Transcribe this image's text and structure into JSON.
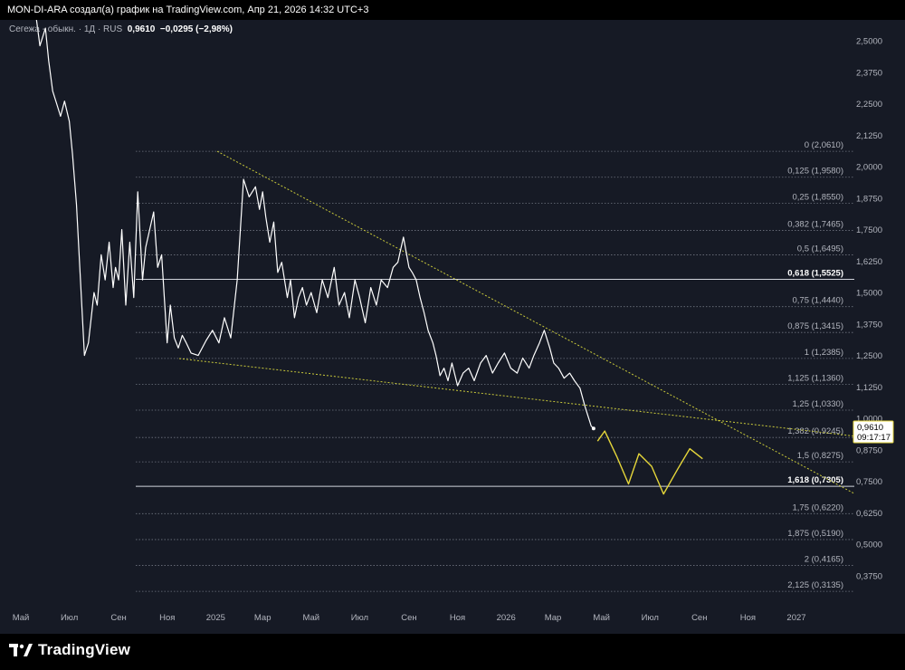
{
  "header": {
    "caption": "MON-DI-ARA создал(а) график на TradingView.com, Апр 21, 2026 14:32 UTC+3"
  },
  "legend": {
    "symbol": "Сегежа - обыкн. · 1Д · RUS",
    "last": "0,9610",
    "change": "−0,0295 (−2,98%)"
  },
  "brand": {
    "name": "TradingView"
  },
  "colors": {
    "background": "#161a25",
    "price_line": "#ffffff",
    "trend_line": "#c9c93a",
    "projection": "#e5d63a",
    "price_label_bg": "#ffffff",
    "price_label_border": "#e5d63a"
  },
  "chart_data": {
    "type": "line",
    "x_labels": [
      "Май",
      "Июл",
      "Сен",
      "Ноя",
      "2025",
      "Мар",
      "Май",
      "Июл",
      "Сен",
      "Ноя",
      "2026",
      "Мар",
      "Май",
      "Июл",
      "Сен",
      "Ноя",
      "2027"
    ],
    "y_ticks": [
      "2,5000",
      "2,3750",
      "2,2500",
      "2,1250",
      "2,0000",
      "1,8750",
      "1,7500",
      "1,6250",
      "1,5000",
      "1,3750",
      "1,2500",
      "1,1250",
      "1,0000",
      "0,8750",
      "0,7500",
      "0,6250",
      "0,5000",
      "0,3750"
    ],
    "ylim": [
      0.3,
      2.55
    ],
    "current_price": {
      "value": "0,9610",
      "countdown": "09:17:17"
    },
    "fib_levels": [
      {
        "ratio": "0",
        "price": "2,0610",
        "v": 2.061
      },
      {
        "ratio": "0,125",
        "price": "1,9580",
        "v": 1.958
      },
      {
        "ratio": "0,25",
        "price": "1,8550",
        "v": 1.855
      },
      {
        "ratio": "0,382",
        "price": "1,7465",
        "v": 1.7465
      },
      {
        "ratio": "0,5",
        "price": "1,6495",
        "v": 1.6495
      },
      {
        "ratio": "0,618",
        "price": "1,5525",
        "v": 1.5525,
        "bold": true
      },
      {
        "ratio": "0,75",
        "price": "1,4440",
        "v": 1.444
      },
      {
        "ratio": "0,875",
        "price": "1,3415",
        "v": 1.3415
      },
      {
        "ratio": "1",
        "price": "1,2385",
        "v": 1.2385
      },
      {
        "ratio": "1,125",
        "price": "1,1360",
        "v": 1.136
      },
      {
        "ratio": "1,25",
        "price": "1,0330",
        "v": 1.033
      },
      {
        "ratio": "1,382",
        "price": "0,9245",
        "v": 0.9245
      },
      {
        "ratio": "1,5",
        "price": "0,8275",
        "v": 0.8275
      },
      {
        "ratio": "1,618",
        "price": "0,7305",
        "v": 0.7305,
        "bold": true
      },
      {
        "ratio": "1,75",
        "price": "0,6220",
        "v": 0.622
      },
      {
        "ratio": "1,875",
        "price": "0,5190",
        "v": 0.519
      },
      {
        "ratio": "2",
        "price": "0,4165",
        "v": 0.4165
      },
      {
        "ratio": "2,125",
        "price": "0,3135",
        "v": 0.3135
      }
    ],
    "series": [
      {
        "kind": "price",
        "x": [
          "2024-05-20",
          "2024-05-25",
          "2024-06-01",
          "2024-06-05",
          "2024-06-10",
          "2024-06-15",
          "2024-06-20",
          "2024-06-25",
          "2024-07-01",
          "2024-07-05",
          "2024-07-10",
          "2024-07-15",
          "2024-07-20",
          "2024-07-25",
          "2024-08-01",
          "2024-08-05",
          "2024-08-10",
          "2024-08-15",
          "2024-08-20",
          "2024-08-25",
          "2024-08-28",
          "2024-09-01",
          "2024-09-05",
          "2024-09-10",
          "2024-09-15",
          "2024-09-20",
          "2024-09-25",
          "2024-10-01",
          "2024-10-05",
          "2024-10-10",
          "2024-10-15",
          "2024-10-20",
          "2024-10-25",
          "2024-11-01",
          "2024-11-05",
          "2024-11-10",
          "2024-11-15",
          "2024-11-20",
          "2024-11-25",
          "2024-12-01",
          "2024-12-10",
          "2024-12-20",
          "2024-12-28",
          "2025-01-05",
          "2025-01-12",
          "2025-01-20",
          "2025-01-28",
          "2025-02-05",
          "2025-02-12",
          "2025-02-20",
          "2025-02-25",
          "2025-03-01",
          "2025-03-05",
          "2025-03-10",
          "2025-03-15",
          "2025-03-20",
          "2025-03-25",
          "2025-04-01",
          "2025-04-05",
          "2025-04-10",
          "2025-04-15",
          "2025-04-20",
          "2025-04-25",
          "2025-05-01",
          "2025-05-08",
          "2025-05-15",
          "2025-05-22",
          "2025-05-30",
          "2025-06-05",
          "2025-06-12",
          "2025-06-18",
          "2025-06-25",
          "2025-07-01",
          "2025-07-08",
          "2025-07-15",
          "2025-07-22",
          "2025-07-28",
          "2025-08-05",
          "2025-08-12",
          "2025-08-18",
          "2025-08-25",
          "2025-09-01",
          "2025-09-05",
          "2025-09-10",
          "2025-09-15",
          "2025-09-20",
          "2025-09-25",
          "2025-10-01",
          "2025-10-05",
          "2025-10-10",
          "2025-10-15",
          "2025-10-20",
          "2025-10-25",
          "2025-11-01",
          "2025-11-08",
          "2025-11-15",
          "2025-11-22",
          "2025-11-30",
          "2025-12-07",
          "2025-12-15",
          "2025-12-22",
          "2025-12-30",
          "2026-01-07",
          "2026-01-15",
          "2026-01-22",
          "2026-01-30",
          "2026-02-05",
          "2026-02-12",
          "2026-02-18",
          "2026-02-25",
          "2026-03-02",
          "2026-03-08",
          "2026-03-15",
          "2026-03-22",
          "2026-03-28",
          "2026-04-04",
          "2026-04-10",
          "2026-04-15",
          "2026-04-18",
          "2026-04-21"
        ],
        "y": [
          2.6,
          2.48,
          2.55,
          2.42,
          2.3,
          2.25,
          2.2,
          2.26,
          2.18,
          2.05,
          1.85,
          1.55,
          1.25,
          1.3,
          1.5,
          1.45,
          1.65,
          1.55,
          1.7,
          1.52,
          1.6,
          1.55,
          1.75,
          1.45,
          1.7,
          1.48,
          1.9,
          1.55,
          1.68,
          1.75,
          1.82,
          1.6,
          1.65,
          1.3,
          1.45,
          1.32,
          1.28,
          1.33,
          1.3,
          1.26,
          1.25,
          1.31,
          1.35,
          1.3,
          1.4,
          1.32,
          1.55,
          1.95,
          1.88,
          1.92,
          1.83,
          1.9,
          1.8,
          1.7,
          1.78,
          1.58,
          1.62,
          1.48,
          1.55,
          1.4,
          1.48,
          1.52,
          1.45,
          1.5,
          1.42,
          1.55,
          1.48,
          1.6,
          1.45,
          1.5,
          1.4,
          1.55,
          1.48,
          1.38,
          1.52,
          1.45,
          1.55,
          1.52,
          1.6,
          1.62,
          1.72,
          1.6,
          1.58,
          1.55,
          1.48,
          1.42,
          1.35,
          1.3,
          1.25,
          1.17,
          1.2,
          1.15,
          1.22,
          1.13,
          1.18,
          1.2,
          1.15,
          1.22,
          1.25,
          1.18,
          1.22,
          1.26,
          1.2,
          1.18,
          1.24,
          1.2,
          1.25,
          1.3,
          1.35,
          1.28,
          1.22,
          1.2,
          1.16,
          1.18,
          1.15,
          1.12,
          1.05,
          1.0,
          0.97,
          0.96
        ]
      },
      {
        "kind": "projection",
        "x": [
          "2026-04-26",
          "2026-05-05",
          "2026-05-20",
          "2026-06-04",
          "2026-06-17",
          "2026-07-03",
          "2026-07-18",
          "2026-08-05",
          "2026-08-20",
          "2026-09-05"
        ],
        "y": [
          0.91,
          0.95,
          0.85,
          0.74,
          0.86,
          0.81,
          0.7,
          0.8,
          0.88,
          0.84
        ]
      }
    ]
  }
}
